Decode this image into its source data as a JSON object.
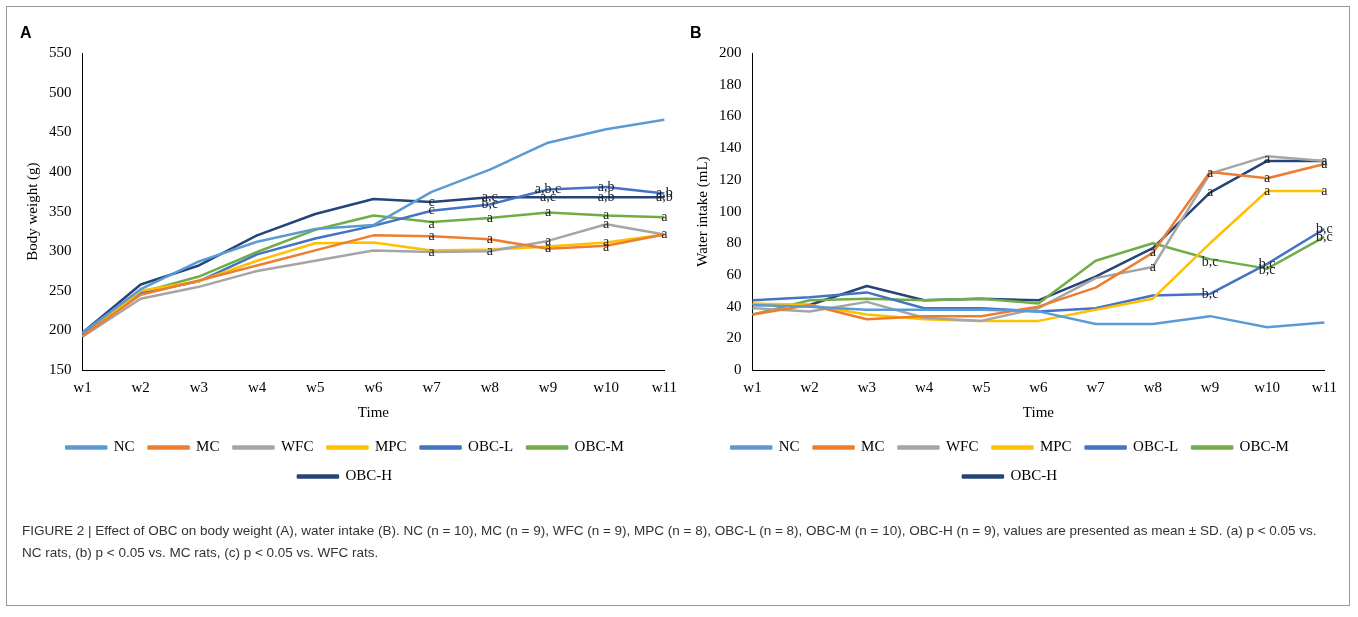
{
  "chart_data": [
    {
      "type": "line",
      "title": "A",
      "xlabel": "Time",
      "ylabel": "Body weight (g)",
      "categories": [
        "w1",
        "w2",
        "w3",
        "w4",
        "w5",
        "w6",
        "w7",
        "w8",
        "w9",
        "w10",
        "w11"
      ],
      "ylim": [
        150,
        550
      ],
      "yticks": [
        150,
        200,
        250,
        300,
        350,
        400,
        450,
        500,
        550
      ],
      "grid": false,
      "legend": "bottom",
      "marker": "none",
      "line_style": "solid",
      "series": [
        {
          "name": "NC",
          "color": "#5b9bd5",
          "values": [
            197,
            252,
            287,
            312,
            328,
            333,
            375,
            403,
            437,
            454,
            466
          ]
        },
        {
          "name": "MC",
          "color": "#ed7d31",
          "values": [
            193,
            245,
            263,
            282,
            301,
            320,
            319,
            315,
            303,
            307,
            321
          ]
        },
        {
          "name": "WFC",
          "color": "#a5a5a5",
          "values": [
            192,
            240,
            255,
            275,
            288,
            301,
            299,
            300,
            313,
            334,
            321
          ]
        },
        {
          "name": "MPC",
          "color": "#ffc000",
          "values": [
            192,
            250,
            262,
            288,
            310,
            311,
            301,
            302,
            306,
            311,
            321
          ]
        },
        {
          "name": "OBC-L",
          "color": "#4472c4",
          "values": [
            195,
            247,
            262,
            296,
            316,
            332,
            351,
            359,
            378,
            381,
            373
          ]
        },
        {
          "name": "OBC-M",
          "color": "#70ad47",
          "values": [
            195,
            248,
            268,
            299,
            327,
            345,
            337,
            342,
            349,
            345,
            343
          ]
        },
        {
          "name": "OBC-H",
          "color": "#264478",
          "values": [
            197,
            258,
            282,
            320,
            347,
            366,
            362,
            368,
            368,
            368,
            368
          ]
        }
      ],
      "annotations": [
        {
          "text": "c",
          "x": "w7",
          "y": 362
        },
        {
          "text": "c",
          "x": "w7",
          "y": 351
        },
        {
          "text": "a",
          "x": "w7",
          "y": 334
        },
        {
          "text": "a",
          "x": "w7",
          "y": 319
        },
        {
          "text": "a",
          "x": "w7",
          "y": 299
        },
        {
          "text": "a,c",
          "x": "w8",
          "y": 368
        },
        {
          "text": "b,c",
          "x": "w8",
          "y": 359
        },
        {
          "text": "a",
          "x": "w8",
          "y": 342
        },
        {
          "text": "a",
          "x": "w8",
          "y": 315
        },
        {
          "text": "a",
          "x": "w8",
          "y": 300
        },
        {
          "text": "a,b,c",
          "x": "w9",
          "y": 378
        },
        {
          "text": "a,c",
          "x": "w9",
          "y": 368
        },
        {
          "text": "a",
          "x": "w9",
          "y": 349
        },
        {
          "text": "a",
          "x": "w9",
          "y": 313
        },
        {
          "text": "a",
          "x": "w9",
          "y": 304
        },
        {
          "text": "a,b",
          "x": "w10",
          "y": 381
        },
        {
          "text": "a,b",
          "x": "w10",
          "y": 368
        },
        {
          "text": "a",
          "x": "w10",
          "y": 345
        },
        {
          "text": "a",
          "x": "w10",
          "y": 334
        },
        {
          "text": "a",
          "x": "w10",
          "y": 311
        },
        {
          "text": "a",
          "x": "w10",
          "y": 305
        },
        {
          "text": "a,b",
          "x": "w11",
          "y": 373
        },
        {
          "text": "a,b",
          "x": "w11",
          "y": 368
        },
        {
          "text": "a",
          "x": "w11",
          "y": 343
        },
        {
          "text": "a",
          "x": "w11",
          "y": 321
        },
        "FIGURE 2 | Effect of OBC on body weight (A), water intake (B). NC (n = 10), MC (n = 9), WFC (n = 9), MPC (n = 8), OBC-L (n = 8), OBC-M (n = 10), OBC-H (n = 9), values are presented as mean ± SD. (a) p < 0.05 vs. NC rats, (b) p < 0.05 vs. MC rats, (c) p < 0.05 vs. WFC rats."
      ]
    },
    {
      "type": "line",
      "title": "B",
      "xlabel": "Time",
      "ylabel": "Water intake (mL)",
      "categories": [
        "w1",
        "w2",
        "w3",
        "w4",
        "w5",
        "w6",
        "w7",
        "w8",
        "w9",
        "w10",
        "w11"
      ],
      "ylim": [
        0,
        200
      ],
      "yticks": [
        0,
        20,
        40,
        60,
        80,
        100,
        120,
        140,
        160,
        180,
        200
      ],
      "grid": false,
      "legend": "bottom",
      "marker": "none",
      "line_style": "solid",
      "series": [
        {
          "name": "NC",
          "color": "#5b9bd5",
          "values": [
            41,
            40,
            38,
            38,
            38,
            37,
            29,
            29,
            34,
            27,
            30
          ]
        },
        {
          "name": "MC",
          "color": "#ed7d31",
          "values": [
            35,
            41,
            32,
            34,
            34,
            40,
            52,
            74,
            125,
            121,
            130
          ]
        },
        {
          "name": "WFC",
          "color": "#a5a5a5",
          "values": [
            39,
            37,
            43,
            33,
            31,
            39,
            58,
            65,
            124,
            135,
            132
          ]
        },
        {
          "name": "MPC",
          "color": "#ffc000",
          "values": [
            42,
            41,
            35,
            32,
            31,
            31,
            38,
            45,
            80,
            113,
            113
          ]
        },
        {
          "name": "OBC-L",
          "color": "#4472c4",
          "values": [
            44,
            46,
            49,
            39,
            39,
            37,
            39,
            47,
            48,
            67,
            89
          ]
        },
        {
          "name": "OBC-M",
          "color": "#70ad47",
          "values": [
            35,
            44,
            45,
            44,
            45,
            42,
            69,
            80,
            70,
            64,
            84
          ]
        },
        {
          "name": "OBC-H",
          "color": "#264478",
          "values": [
            41,
            41,
            53,
            44,
            45,
            44,
            59,
            77,
            112,
            132,
            132
          ]
        }
      ],
      "annotations": [
        {
          "text": "a",
          "x": "w8",
          "y": 74
        },
        {
          "text": "a",
          "x": "w8",
          "y": 65
        },
        {
          "text": "a",
          "x": "w9",
          "y": 124
        },
        {
          "text": "a",
          "x": "w9",
          "y": 112
        },
        {
          "text": "b,c",
          "x": "w9",
          "y": 68
        },
        {
          "text": "b,c",
          "x": "w9",
          "y": 48
        },
        {
          "text": "a",
          "x": "w10",
          "y": 133
        },
        {
          "text": "a",
          "x": "w10",
          "y": 121
        },
        {
          "text": "a",
          "x": "w10",
          "y": 113
        },
        {
          "text": "b,c",
          "x": "w10",
          "y": 67
        },
        {
          "text": "b,c",
          "x": "w10",
          "y": 63
        },
        {
          "text": "a",
          "x": "w11",
          "y": 132
        },
        {
          "text": "a",
          "x": "w11",
          "y": 130
        },
        {
          "text": "a",
          "x": "w11",
          "y": 113
        },
        {
          "text": "b,c",
          "x": "w11",
          "y": 89
        },
        {
          "text": "b,c",
          "x": "w11",
          "y": 84
        }
      ]
    }
  ]
}
